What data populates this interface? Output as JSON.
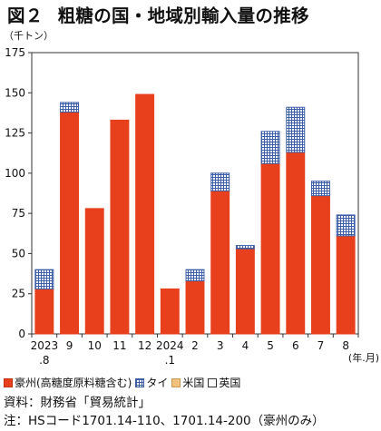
{
  "header": {
    "figure_number": "図２",
    "title": "粗糖の国・地域別輸入量の推移",
    "unit": "（千トン）"
  },
  "chart_data": {
    "type": "bar",
    "stacked": true,
    "categories": [
      "2023\n.8",
      "9",
      "10",
      "11",
      "12",
      "2024\n.1",
      "2",
      "3",
      "4",
      "5",
      "6",
      "7",
      "8"
    ],
    "x_unit_label": "(年.月)",
    "ylim": [
      0,
      175
    ],
    "yticks": [
      0,
      25,
      50,
      75,
      100,
      125,
      150,
      175
    ],
    "grid": false,
    "legend_position": "bottom",
    "series": [
      {
        "name": "豪州(高糖度原料糖含む)",
        "color": "#e8401c",
        "pattern": "solid",
        "values": [
          28,
          138,
          78,
          133,
          149,
          28,
          33,
          89,
          53,
          106,
          113,
          86,
          61
        ]
      },
      {
        "name": "タイ",
        "color": "#3c5fa8",
        "pattern": "grid",
        "values": [
          12,
          6,
          0,
          0,
          0,
          0,
          7,
          11,
          2,
          20,
          28,
          9,
          13
        ]
      },
      {
        "name": "米国",
        "color": "#f2c27d",
        "pattern": "solid",
        "values": [
          0,
          0,
          0,
          0,
          0,
          0,
          0,
          0,
          0,
          0,
          0,
          0,
          0
        ]
      },
      {
        "name": "英国",
        "color": "#ffffff",
        "pattern": "outline",
        "values": [
          0,
          0,
          0,
          0,
          0,
          0,
          0,
          0,
          0,
          0,
          0,
          0,
          0
        ]
      }
    ]
  },
  "footer": {
    "source": "資料：財務省「貿易統計」",
    "note": "注：HSコード1701.14-110、1701.14-200（豪州のみ）"
  }
}
